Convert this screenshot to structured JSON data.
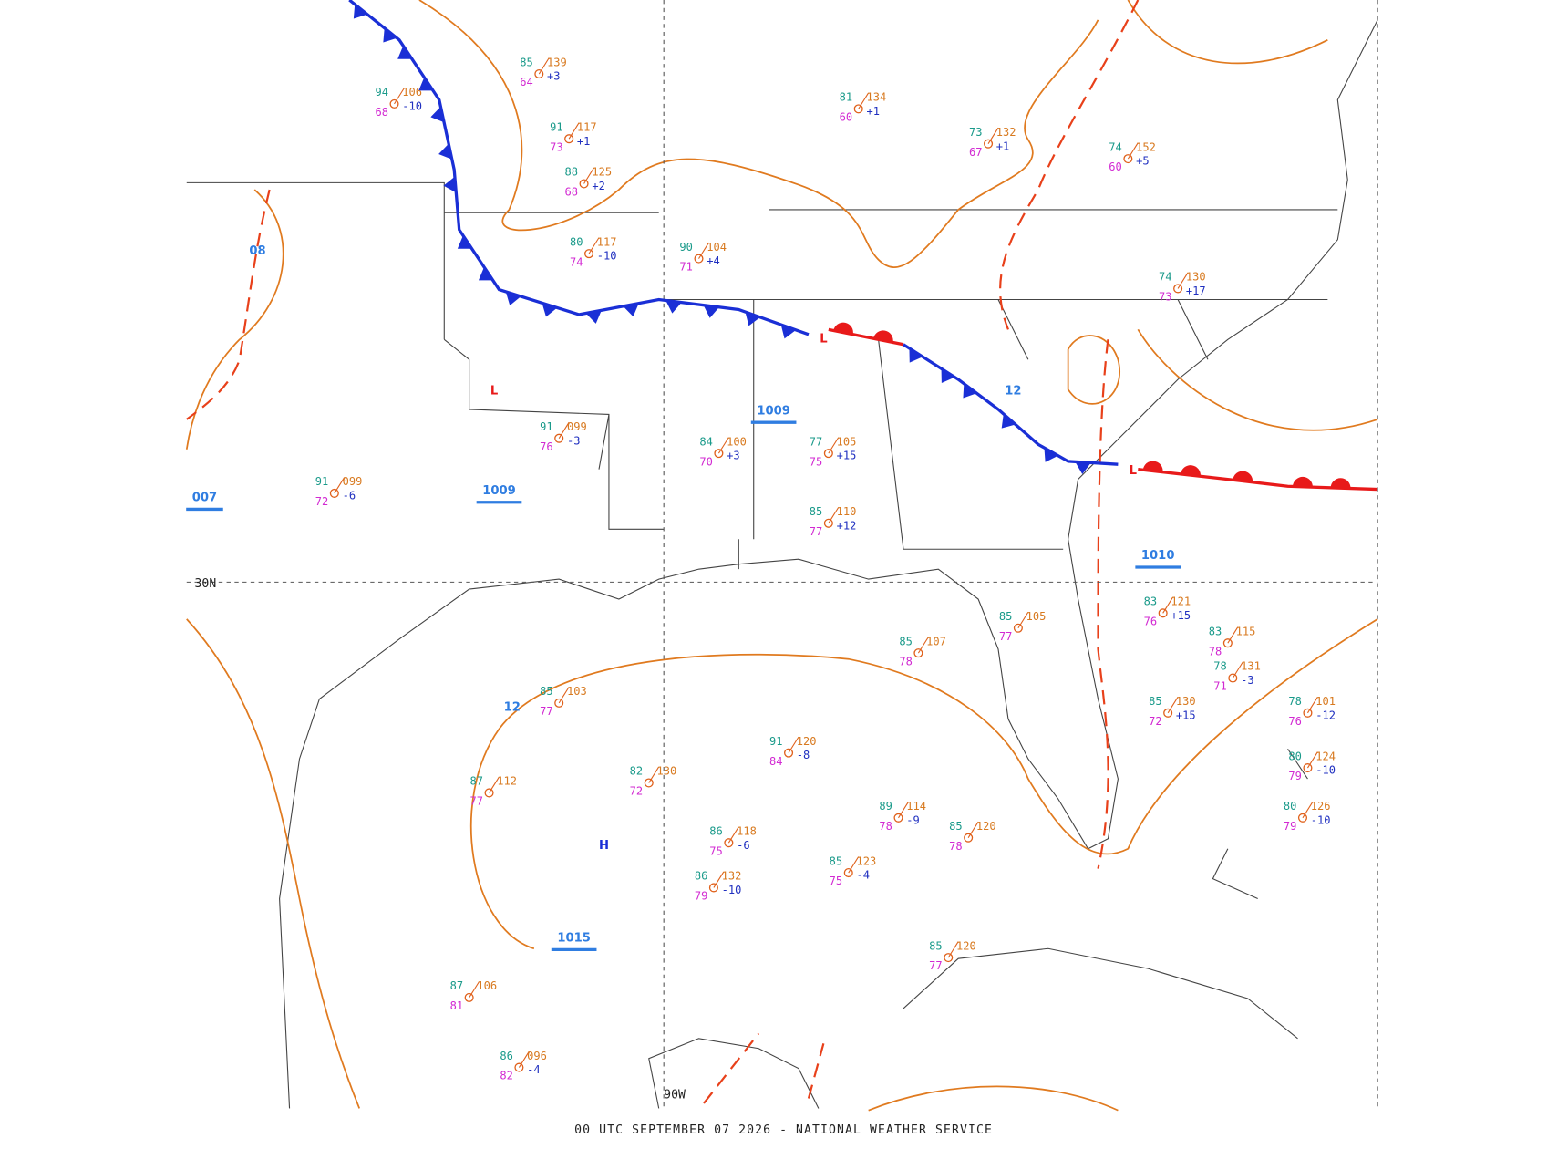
{
  "title": "00 UTC SEPTEMBER 07 2026 - NATIONAL WEATHER SERVICE",
  "grid_labels": {
    "latitude": "30N",
    "longitude": "90W"
  },
  "pressure_centers": [
    "H",
    "L",
    "L",
    "L"
  ],
  "isobar_labels": [
    "1009",
    "1009",
    "1010",
    "1015",
    "007",
    "08",
    "12",
    "12"
  ],
  "stations": [
    {
      "temp": "85",
      "pressure": "139",
      "dewpoint": "64",
      "tendency": "+3"
    },
    {
      "temp": "91",
      "pressure": "117",
      "dewpoint": "73",
      "tendency": "+1"
    },
    {
      "temp": "88",
      "pressure": "125",
      "dewpoint": "68",
      "tendency": "+2"
    },
    {
      "temp": "80",
      "pressure": "117",
      "dewpoint": "74",
      "tendency": "-10"
    },
    {
      "temp": "90",
      "pressure": "104",
      "dewpoint": "71",
      "tendency": "+4"
    },
    {
      "temp": "81",
      "pressure": "134",
      "dewpoint": "60",
      "tendency": "+1"
    },
    {
      "temp": "73",
      "pressure": "132",
      "dewpoint": "67",
      "tendency": "+1"
    },
    {
      "temp": "74",
      "pressure": "152",
      "dewpoint": "60",
      "tendency": "+5"
    },
    {
      "temp": "74",
      "pressure": "130",
      "dewpoint": "73",
      "tendency": "+17"
    },
    {
      "temp": "84",
      "pressure": "100",
      "dewpoint": "70",
      "tendency": "+3"
    },
    {
      "temp": "77",
      "pressure": "105",
      "dewpoint": "75",
      "tendency": "+15"
    },
    {
      "temp": "85",
      "pressure": "110",
      "dewpoint": "77",
      "tendency": "+12"
    },
    {
      "temp": "83",
      "pressure": "121",
      "dewpoint": "76",
      "tendency": "+15"
    },
    {
      "temp": "85",
      "pressure": "130",
      "dewpoint": "72",
      "tendency": "+15"
    },
    {
      "temp": "85",
      "pressure": "103",
      "dewpoint": "77"
    },
    {
      "temp": "87",
      "pressure": "112",
      "dewpoint": "77"
    },
    {
      "temp": "82",
      "pressure": "130",
      "dewpoint": "72"
    },
    {
      "temp": "91",
      "pressure": "120",
      "dewpoint": "84",
      "tendency": "-8"
    },
    {
      "temp": "86",
      "pressure": "118",
      "dewpoint": "75",
      "tendency": "-6"
    },
    {
      "temp": "86",
      "pressure": "132",
      "dewpoint": "79",
      "tendency": "-10"
    },
    {
      "temp": "85",
      "pressure": "123",
      "dewpoint": "75",
      "tendency": "-4"
    },
    {
      "temp": "89",
      "pressure": "114",
      "dewpoint": "78",
      "tendency": "-9"
    },
    {
      "temp": "85",
      "pressure": "120",
      "dewpoint": "78"
    },
    {
      "temp": "85",
      "pressure": "120",
      "dewpoint": "77"
    },
    {
      "temp": "78",
      "pressure": "101",
      "dewpoint": "76",
      "tendency": "-12"
    },
    {
      "temp": "80",
      "pressure": "124",
      "dewpoint": "79",
      "tendency": "-10"
    },
    {
      "temp": "80",
      "pressure": "126",
      "dewpoint": "79",
      "tendency": "-10"
    },
    {
      "temp": "87",
      "pressure": "106",
      "dewpoint": "81"
    },
    {
      "temp": "86",
      "pressure": "096",
      "dewpoint": "82",
      "tendency": "-4"
    },
    {
      "temp": "91",
      "pressure": "099",
      "dewpoint": "72",
      "tendency": "-6"
    },
    {
      "temp": "91",
      "pressure": "099",
      "dewpoint": "76",
      "tendency": "-3"
    },
    {
      "temp": "94",
      "pressure": "106",
      "dewpoint": "68",
      "tendency": "-10"
    },
    {
      "temp": "85",
      "pressure": "107",
      "dewpoint": "78"
    },
    {
      "temp": "85",
      "pressure": "105",
      "dewpoint": "77"
    },
    {
      "temp": "83",
      "pressure": "115",
      "dewpoint": "78"
    },
    {
      "temp": "78",
      "pressure": "131",
      "dewpoint": "71",
      "tendency": "-3"
    }
  ]
}
